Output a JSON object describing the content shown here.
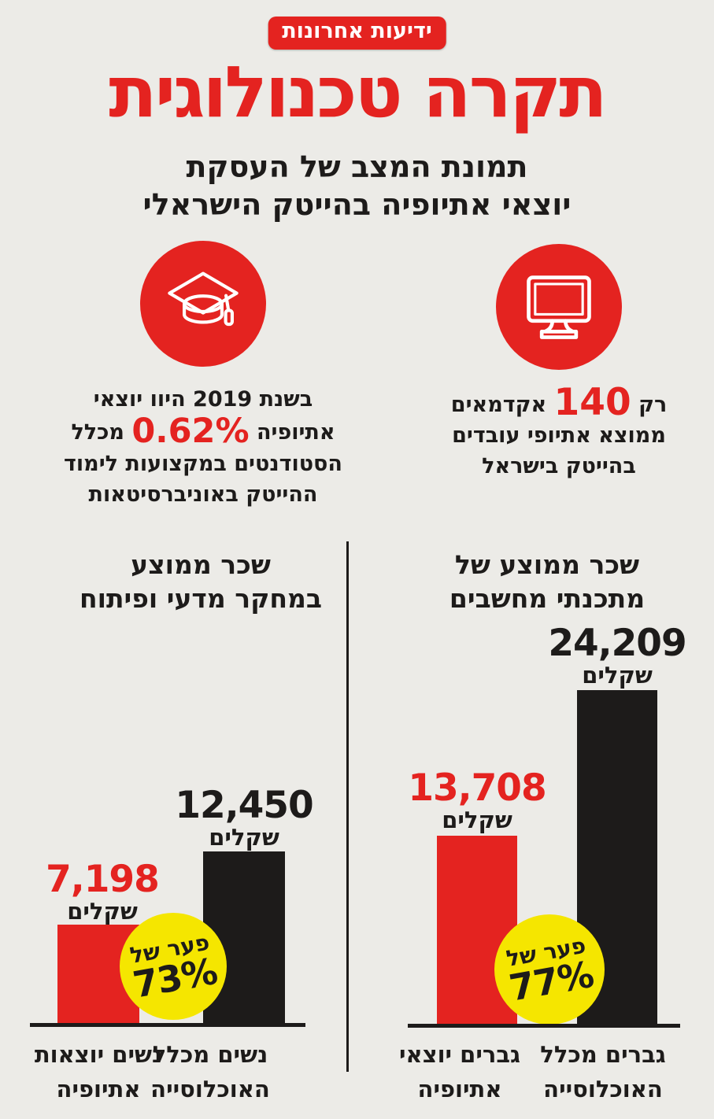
{
  "brand": {
    "logo_text": "ידיעות אחרונות"
  },
  "header": {
    "title": "תקרה טכנולוגית",
    "subtitle_line1": "תמונת המצב של העסקת",
    "subtitle_line2": "יוצאי אתיופיה בהייטק הישראלי"
  },
  "stats": [
    {
      "icon": "graduation-cap-icon",
      "lines": [
        {
          "pre": "בשנת 2019 היוו יוצאי"
        },
        {
          "pre": "אתיופיה",
          "highlight": "0.62%",
          "post": "מכלל"
        },
        {
          "pre": "הסטודנטים במקצועות לימוד"
        },
        {
          "pre": "ההייטק באוניברסיטאות"
        }
      ]
    },
    {
      "icon": "computer-monitor-icon",
      "lines": [
        {
          "pre": "רק",
          "highlight": "140",
          "post": "אקדמאים"
        },
        {
          "pre": "ממוצא אתיופי עובדים"
        },
        {
          "pre": "בהייטק בישראל"
        }
      ]
    }
  ],
  "chart_data": [
    {
      "type": "bar",
      "title": "שכר ממוצע במחקר מדעי ופיתוח",
      "title_lines": [
        "שכר ממוצע",
        "במחקר מדעי ופיתוח"
      ],
      "unit": "שקלים",
      "categories": [
        "נשים יוצאות אתיופיה",
        "נשים מכלל האוכלוסייה"
      ],
      "categories_lines": [
        [
          "נשים יוצאות",
          "אתיופיה"
        ],
        [
          "נשים מכלל",
          "האוכלוסייה"
        ]
      ],
      "values": [
        7198,
        12450
      ],
      "values_display": [
        "7,198",
        "12,450"
      ],
      "series_colors": [
        "#e42320",
        "#1d1b1a"
      ],
      "gap_badge": {
        "label": "פער של",
        "value": "73%"
      },
      "ylim": [
        0,
        25000
      ],
      "grid": false,
      "legend": false
    },
    {
      "type": "bar",
      "title": "שכר ממוצע של מתכנתי מחשבים",
      "title_lines": [
        "שכר ממוצע של",
        "מתכנתי מחשבים"
      ],
      "unit": "שקלים",
      "categories": [
        "גברים יוצאי אתיופיה",
        "גברים מכלל האוכלוסייה"
      ],
      "categories_lines": [
        [
          "גברים יוצאי",
          "אתיופיה"
        ],
        [
          "גברים מכלל",
          "האוכלוסייה"
        ]
      ],
      "values": [
        13708,
        24209
      ],
      "values_display": [
        "13,708",
        "24,209"
      ],
      "series_colors": [
        "#e42320",
        "#1d1b1a"
      ],
      "gap_badge": {
        "label": "פער של",
        "value": "77%"
      },
      "ylim": [
        0,
        25000
      ],
      "grid": false,
      "legend": false
    }
  ],
  "colors": {
    "red": "#e42320",
    "black": "#1d1b1a",
    "yellow": "#f5e600",
    "background": "#ecebe7"
  }
}
